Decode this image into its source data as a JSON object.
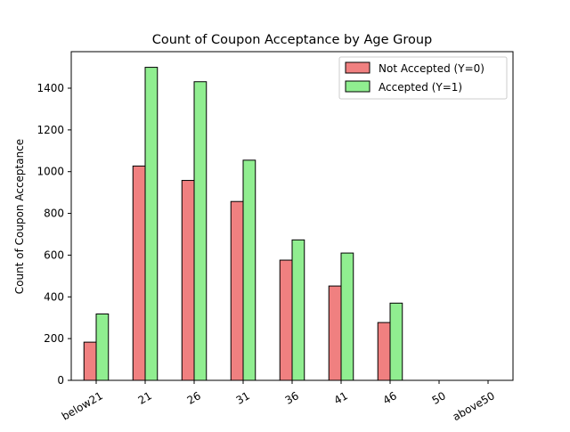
{
  "chart_data": {
    "type": "bar",
    "title": "Count of Coupon Acceptance by Age Group",
    "xlabel": "",
    "ylabel": "Count of Coupon Acceptance",
    "categories": [
      "below21",
      "21",
      "26",
      "31",
      "36",
      "41",
      "46",
      "50",
      "above50"
    ],
    "series": [
      {
        "name": "Not Accepted (Y=0)",
        "color": "#f08080",
        "values": [
          183,
          1027,
          958,
          857,
          576,
          452,
          277,
          0,
          0
        ]
      },
      {
        "name": "Accepted (Y=1)",
        "color": "#90ee90",
        "values": [
          318,
          1500,
          1431,
          1055,
          673,
          610,
          370,
          0,
          0
        ]
      }
    ],
    "ylim": [
      0,
      1575
    ],
    "yticks": [
      0,
      200,
      400,
      600,
      800,
      1000,
      1200,
      1400
    ],
    "grid": false,
    "legend_position": "top-right"
  }
}
